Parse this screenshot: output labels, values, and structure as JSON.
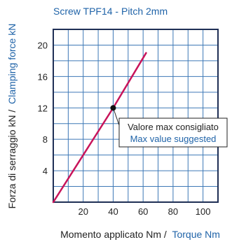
{
  "colors": {
    "blue": "#1f63a8",
    "dark": "#222222",
    "line": "#c8145a",
    "grid": "#3d78b6",
    "border": "#1f2f55",
    "background": "#ffffff"
  },
  "chart_data": {
    "type": "line",
    "title": "Screw TPF14  - Pitch 2mm",
    "xlabel_part1": "Momento applicato Nm /",
    "xlabel_part2": "Torque Nm",
    "ylabel_part1": "Forza di serraggio kN  /",
    "ylabel_part2": "Clamping force kN",
    "xlim": [
      0,
      110
    ],
    "ylim": [
      0,
      22
    ],
    "x_ticks": [
      20,
      40,
      60,
      80,
      100
    ],
    "y_ticks": [
      4,
      8,
      12,
      16,
      20
    ],
    "grid": true,
    "series": [
      {
        "x": [
          0,
          40,
          62
        ],
        "y": [
          0,
          12,
          19
        ]
      }
    ],
    "annotation": {
      "point": {
        "x": 40,
        "y": 12
      },
      "text_line1": "Valore max consigliato",
      "text_line2": "Max value suggested"
    }
  }
}
